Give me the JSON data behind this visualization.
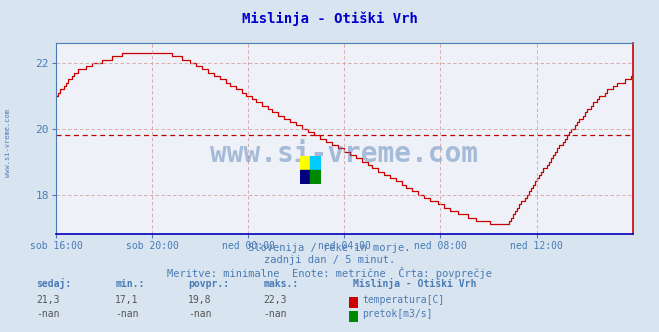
{
  "title": "Mislinja - Otiški Vrh",
  "bg_color": "#d8e4f0",
  "plot_bg_color": "#eef2f8",
  "grid_color": "#d4a0a0",
  "avg_value": 19.8,
  "y_min": 16.8,
  "y_max": 22.6,
  "y_ticks": [
    18,
    20,
    22
  ],
  "x_tick_labels": [
    "sob 16:00",
    "sob 20:00",
    "ned 00:00",
    "ned 04:00",
    "ned 08:00",
    "ned 12:00"
  ],
  "x_tick_positions": [
    0,
    48,
    96,
    144,
    192,
    240
  ],
  "total_points": 289,
  "line_color": "#cc0000",
  "avg_line_color": "#bb0000",
  "watermark": "www.si-vreme.com",
  "watermark_color": "#3a6aaa",
  "subtitle1": "Slovenija / reke in morje.",
  "subtitle2": "zadnji dan / 5 minut.",
  "subtitle3": "Meritve: minimalne  Enote: metrične  Črta: povprečje",
  "footer_color": "#4a7ab5",
  "label_color": "#4a7ab5",
  "title_color": "#0000cc",
  "left_label": "www.si-vreme.com",
  "sedaj": "21,3",
  "min_val": "17,1",
  "povpr": "19,8",
  "maks": "22,3"
}
